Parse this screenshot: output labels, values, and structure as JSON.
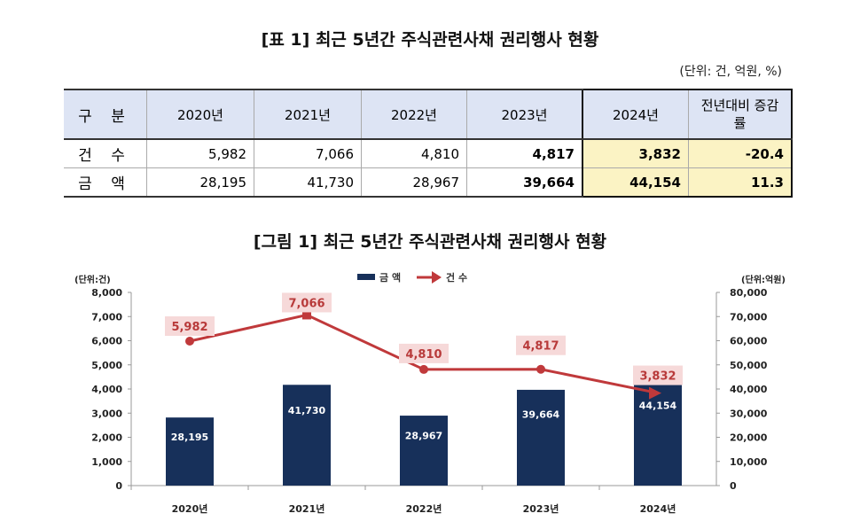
{
  "table": {
    "title": "[표 1] 최근 5년간 주식관련사채 권리행사 현황",
    "unit": "(단위: 건, 억원, %)",
    "headers": [
      "구 분",
      "2020년",
      "2021년",
      "2022년",
      "2023년",
      "2024년",
      "전년대비 증감률"
    ],
    "rows": [
      {
        "label": "건 수",
        "values": [
          "5,982",
          "7,066",
          "4,810",
          "4,817",
          "3,832",
          "-20.4"
        ]
      },
      {
        "label": "금 액",
        "values": [
          "28,195",
          "41,730",
          "28,967",
          "39,664",
          "44,154",
          "11.3"
        ]
      }
    ]
  },
  "chart_data": {
    "type": "bar+line",
    "title": "[그림 1] 최근 5년간 주식관련사채 권리행사 현황",
    "categories": [
      "2020년",
      "2021년",
      "2022년",
      "2023년",
      "2024년"
    ],
    "series": [
      {
        "name": "금 액",
        "type": "bar",
        "axis": "right",
        "values": [
          28195,
          41730,
          28967,
          39664,
          44154
        ],
        "labels": [
          "28,195",
          "41,730",
          "28,967",
          "39,664",
          "44,154"
        ],
        "color": "#17305a"
      },
      {
        "name": "건 수",
        "type": "line",
        "axis": "left",
        "values": [
          5982,
          7066,
          4810,
          4817,
          3832
        ],
        "labels": [
          "5,982",
          "7,066",
          "4,810",
          "4,817",
          "3,832"
        ],
        "color": "#c0393b"
      }
    ],
    "left_axis": {
      "label": "(단위:건)",
      "ylim": [
        0,
        8000
      ],
      "ticks": [
        "0",
        "1,000",
        "2,000",
        "3,000",
        "4,000",
        "5,000",
        "6,000",
        "7,000",
        "8,000"
      ]
    },
    "right_axis": {
      "label": "(단위:억원)",
      "ylim": [
        0,
        80000
      ],
      "ticks": [
        "0",
        "10,000",
        "20,000",
        "30,000",
        "40,000",
        "50,000",
        "60,000",
        "70,000",
        "80,000"
      ]
    },
    "legend_position": "top-center",
    "grid": false
  }
}
